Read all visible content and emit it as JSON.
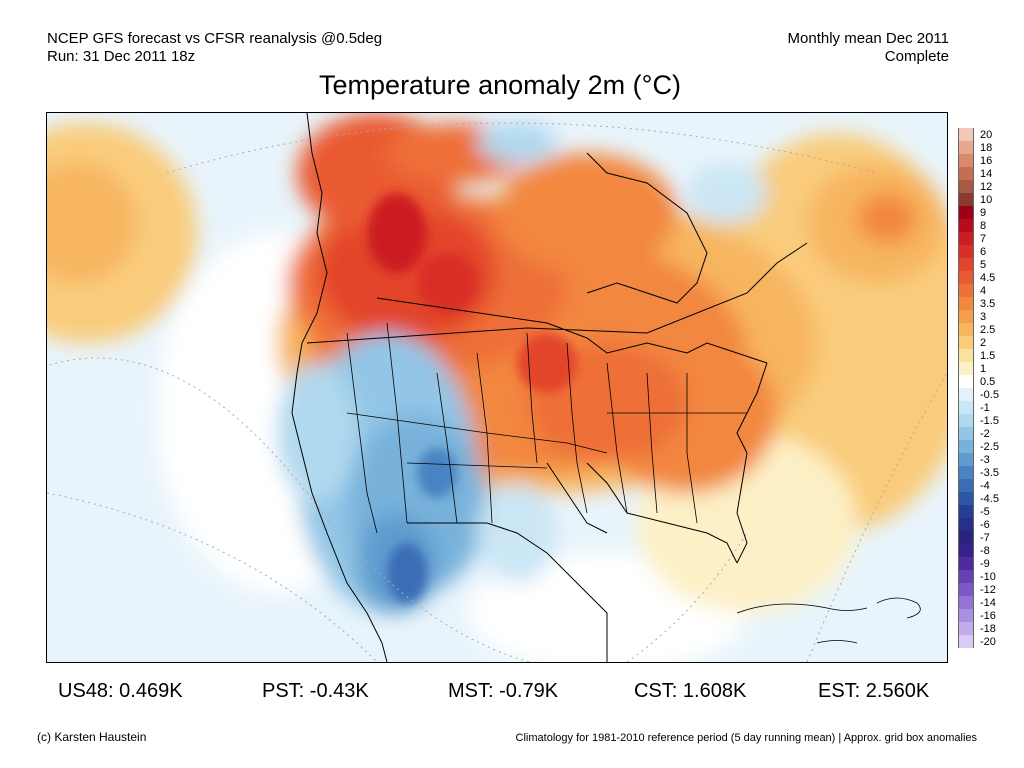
{
  "header": {
    "line1_left": "NCEP GFS forecast vs CFSR reanalysis @0.5deg",
    "line2_left": "Run: 31 Dec 2011 18z",
    "line1_right": "Monthly mean Dec 2011",
    "line2_right": "Complete"
  },
  "title": "Temperature anomaly 2m (°C)",
  "colorbar": {
    "labels": [
      "20",
      "18",
      "16",
      "14",
      "12",
      "10",
      "9",
      "8",
      "7",
      "6",
      "5",
      "4.5",
      "4",
      "3.5",
      "3",
      "2.5",
      "2",
      "1.5",
      "1",
      "0.5",
      "-0.5",
      "-1",
      "-1.5",
      "-2",
      "-2.5",
      "-3",
      "-3.5",
      "-4",
      "-4.5",
      "-5",
      "-6",
      "-7",
      "-8",
      "-9",
      "-10",
      "-12",
      "-14",
      "-16",
      "-18",
      "-20"
    ],
    "colors": [
      "#f2c9b8",
      "#e8a88f",
      "#d98a6d",
      "#c46e52",
      "#a65a45",
      "#8a3a2e",
      "#9e0016",
      "#b80c1e",
      "#cc1d23",
      "#d92f27",
      "#e3452c",
      "#ea5a32",
      "#ee7038",
      "#f2873f",
      "#f59e4c",
      "#f7b560",
      "#f9cc7c",
      "#fbe1a0",
      "#fdf0c6",
      "#ffffff",
      "#e3f1fa",
      "#cbe6f5",
      "#b0d8ef",
      "#93c6e6",
      "#78b2db",
      "#5e9bcf",
      "#4a83c2",
      "#3a6db5",
      "#2d56a6",
      "#253f95",
      "#26308a",
      "#2a227c",
      "#38208a",
      "#4f2b9e",
      "#6640b5",
      "#7d58c8",
      "#9473d6",
      "#ab8fe2",
      "#c2aced",
      "#d9ccf6"
    ]
  },
  "stats": [
    {
      "label": "US48: 0.469K"
    },
    {
      "label": "PST: -0.43K"
    },
    {
      "label": "MST: -0.79K"
    },
    {
      "label": "CST: 1.608K"
    },
    {
      "label": "EST: 2.560K"
    }
  ],
  "footer": {
    "left": "(c) Karsten Haustein",
    "right": "Climatology for 1981-2010 reference period (5 day running mean) | Approx. grid box anomalies"
  }
}
